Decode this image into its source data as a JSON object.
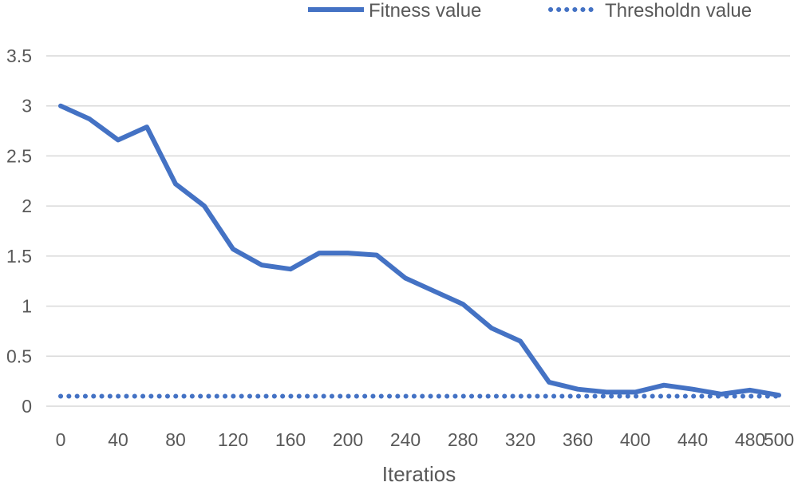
{
  "chart_data": {
    "type": "line",
    "title": "",
    "xlabel": "Iteratios",
    "ylabel": "",
    "ylim": [
      0,
      3.5
    ],
    "xlim": [
      0,
      500
    ],
    "grid": "horizontal",
    "legend_position": "top-right",
    "x_ticks": [
      "0",
      "40",
      "80",
      "120",
      "160",
      "200",
      "240",
      "280",
      "320",
      "360",
      "400",
      "440",
      "480",
      "500"
    ],
    "y_ticks": [
      "0",
      "0.5",
      "1",
      "1.5",
      "2",
      "2.5",
      "3",
      "3.5"
    ],
    "x": [
      0,
      20,
      40,
      60,
      80,
      100,
      120,
      140,
      160,
      180,
      200,
      220,
      240,
      260,
      280,
      300,
      320,
      340,
      360,
      380,
      400,
      420,
      440,
      460,
      480,
      500
    ],
    "series": [
      {
        "name": "Fitness value",
        "style": "solid",
        "color": "#4472C4",
        "values": [
          3.0,
          2.87,
          2.66,
          2.79,
          2.22,
          2.0,
          1.57,
          1.41,
          1.37,
          1.53,
          1.53,
          1.51,
          1.28,
          1.15,
          1.02,
          0.78,
          0.65,
          0.24,
          0.17,
          0.14,
          0.14,
          0.21,
          0.17,
          0.12,
          0.16,
          0.11
        ]
      },
      {
        "name": "Thresholdn value",
        "style": "dotted",
        "color": "#4472C4",
        "values": [
          0.1,
          0.1,
          0.1,
          0.1,
          0.1,
          0.1,
          0.1,
          0.1,
          0.1,
          0.1,
          0.1,
          0.1,
          0.1,
          0.1,
          0.1,
          0.1,
          0.1,
          0.1,
          0.1,
          0.1,
          0.1,
          0.1,
          0.1,
          0.1,
          0.1,
          0.1
        ]
      }
    ]
  }
}
